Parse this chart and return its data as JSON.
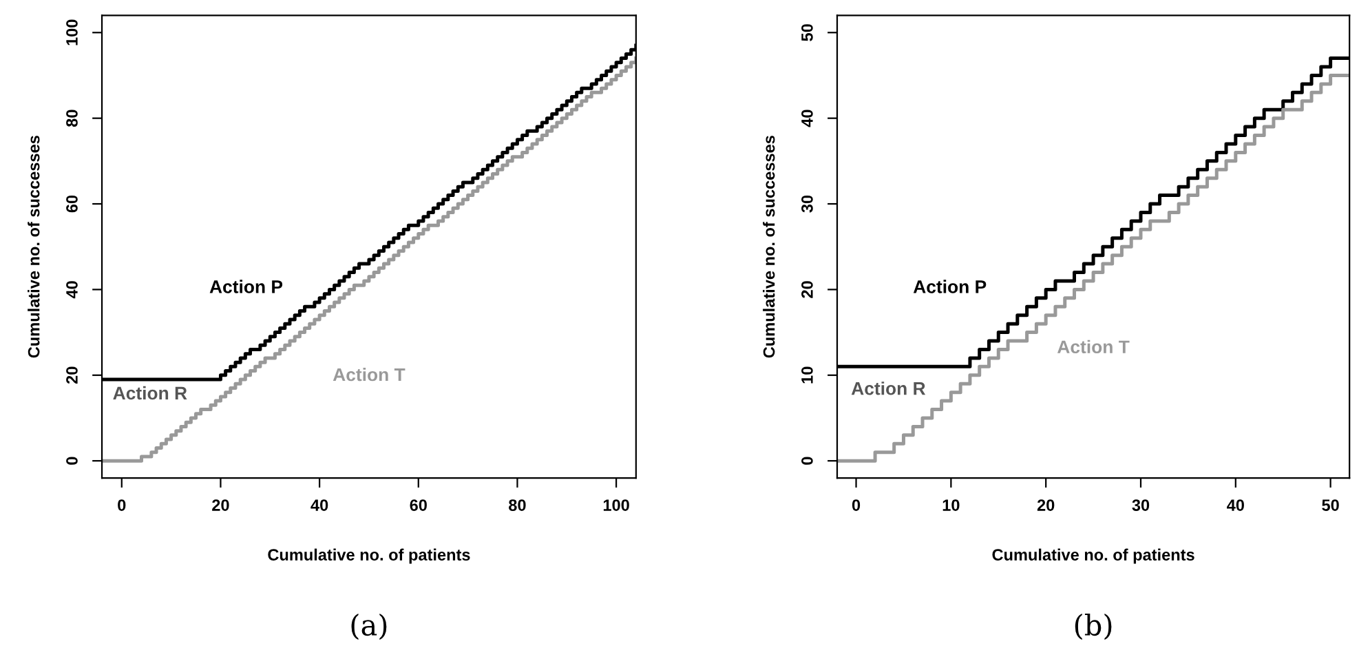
{
  "chart_data": [
    {
      "type": "step",
      "xlabel": "Cumulative no. of patients",
      "ylabel": "Cumulative no. of successes",
      "xlim": [
        -4,
        104
      ],
      "ylim": [
        -4,
        104
      ],
      "xticks": [
        0,
        20,
        40,
        60,
        80,
        100
      ],
      "yticks": [
        0,
        20,
        40,
        60,
        80,
        100
      ],
      "grid": false,
      "legend": false,
      "series": [
        {
          "color": "#000000",
          "x": [
            -4,
            19,
            20,
            21,
            22,
            23,
            24,
            25,
            26,
            27,
            28,
            29,
            30,
            31,
            32,
            33,
            34,
            35,
            36,
            37,
            38,
            39,
            40,
            41,
            42,
            43,
            44,
            45,
            46,
            47,
            48,
            49,
            50,
            51,
            52,
            53,
            54,
            55,
            56,
            57,
            58,
            59,
            60,
            61,
            62,
            63,
            64,
            65,
            66,
            67,
            68,
            69,
            70,
            71,
            72,
            73,
            74,
            75,
            76,
            77,
            78,
            79,
            80,
            81,
            82,
            83,
            84,
            85,
            86,
            87,
            88,
            89,
            90,
            91,
            92,
            93,
            94,
            95,
            96,
            97,
            98,
            99,
            100,
            101,
            102,
            103,
            104
          ],
          "values": [
            19,
            19,
            20,
            21,
            22,
            23,
            24,
            25,
            26,
            26,
            27,
            28,
            29,
            30,
            31,
            32,
            33,
            34,
            35,
            36,
            36,
            37,
            38,
            39,
            40,
            41,
            42,
            43,
            44,
            45,
            46,
            46,
            47,
            48,
            49,
            50,
            51,
            52,
            53,
            54,
            55,
            55,
            56,
            57,
            58,
            59,
            60,
            61,
            62,
            63,
            64,
            65,
            65,
            66,
            67,
            68,
            69,
            70,
            71,
            72,
            73,
            74,
            75,
            76,
            77,
            77,
            78,
            79,
            80,
            81,
            82,
            83,
            84,
            85,
            86,
            87,
            87,
            88,
            89,
            90,
            91,
            92,
            93,
            94,
            95,
            96,
            97
          ]
        },
        {
          "color": "#999999",
          "x": [
            -4,
            3,
            4,
            5,
            6,
            7,
            8,
            9,
            10,
            11,
            12,
            13,
            14,
            15,
            16,
            17,
            18,
            19,
            20,
            21,
            22,
            23,
            24,
            25,
            26,
            27,
            28,
            29,
            30,
            31,
            32,
            33,
            34,
            35,
            36,
            37,
            38,
            39,
            40,
            41,
            42,
            43,
            44,
            45,
            46,
            47,
            48,
            49,
            50,
            51,
            52,
            53,
            54,
            55,
            56,
            57,
            58,
            59,
            60,
            61,
            62,
            63,
            64,
            65,
            66,
            67,
            68,
            69,
            70,
            71,
            72,
            73,
            74,
            75,
            76,
            77,
            78,
            79,
            80,
            81,
            82,
            83,
            84,
            85,
            86,
            87,
            88,
            89,
            90,
            91,
            92,
            93,
            94,
            95,
            96,
            97,
            98,
            99,
            100,
            101,
            102,
            103,
            104
          ],
          "values": [
            0,
            0,
            1,
            1,
            2,
            3,
            4,
            5,
            6,
            7,
            8,
            9,
            10,
            11,
            12,
            12,
            13,
            14,
            15,
            16,
            17,
            18,
            19,
            20,
            21,
            22,
            23,
            24,
            24,
            25,
            26,
            27,
            28,
            29,
            30,
            31,
            32,
            33,
            34,
            35,
            36,
            37,
            38,
            39,
            40,
            41,
            41,
            42,
            43,
            44,
            45,
            46,
            47,
            48,
            49,
            50,
            51,
            52,
            53,
            54,
            55,
            55,
            56,
            57,
            58,
            59,
            60,
            61,
            62,
            63,
            64,
            65,
            66,
            67,
            68,
            69,
            70,
            71,
            71,
            72,
            73,
            74,
            75,
            76,
            77,
            78,
            79,
            80,
            81,
            82,
            83,
            84,
            85,
            86,
            86,
            87,
            88,
            89,
            90,
            91,
            92,
            93,
            94
          ]
        }
      ],
      "annotations": [
        "Action P",
        "Action R",
        "Action T",
        "(a)"
      ]
    },
    {
      "type": "step",
      "xlabel": "Cumulative no. of patients",
      "ylabel": "Cumulative no. of successes",
      "xlim": [
        -2,
        52
      ],
      "ylim": [
        -2,
        52
      ],
      "xticks": [
        0,
        10,
        20,
        30,
        40,
        50
      ],
      "yticks": [
        0,
        10,
        20,
        30,
        40,
        50
      ],
      "grid": false,
      "legend": false,
      "series": [
        {
          "color": "#000000",
          "x": [
            -2,
            12,
            13,
            14,
            15,
            16,
            17,
            18,
            19,
            20,
            21,
            22,
            23,
            24,
            25,
            26,
            27,
            28,
            29,
            30,
            31,
            32,
            33,
            34,
            35,
            36,
            37,
            38,
            39,
            40,
            41,
            42,
            43,
            44,
            45,
            46,
            47,
            48,
            49,
            50,
            52
          ],
          "values": [
            11,
            12,
            13,
            14,
            15,
            16,
            17,
            18,
            19,
            20,
            21,
            21,
            22,
            23,
            24,
            25,
            26,
            27,
            28,
            29,
            30,
            31,
            31,
            32,
            33,
            34,
            35,
            36,
            37,
            38,
            39,
            40,
            41,
            41,
            42,
            43,
            44,
            45,
            46,
            47,
            47
          ]
        },
        {
          "color": "#999999",
          "x": [
            -2,
            2,
            4,
            5,
            6,
            7,
            8,
            9,
            10,
            11,
            12,
            13,
            14,
            15,
            16,
            18,
            19,
            20,
            21,
            22,
            23,
            24,
            25,
            26,
            27,
            28,
            29,
            30,
            31,
            33,
            34,
            35,
            36,
            37,
            38,
            39,
            40,
            41,
            42,
            43,
            44,
            45,
            47,
            48,
            49,
            50,
            52
          ],
          "values": [
            0,
            1,
            2,
            3,
            4,
            5,
            6,
            7,
            8,
            9,
            10,
            11,
            12,
            13,
            14,
            15,
            16,
            17,
            18,
            19,
            20,
            21,
            22,
            23,
            24,
            25,
            26,
            27,
            28,
            29,
            30,
            31,
            32,
            33,
            34,
            35,
            36,
            37,
            38,
            39,
            40,
            41,
            42,
            43,
            44,
            45,
            45
          ]
        }
      ],
      "annotations": [
        "Action P",
        "Action R",
        "Action T",
        "(b)"
      ]
    }
  ]
}
